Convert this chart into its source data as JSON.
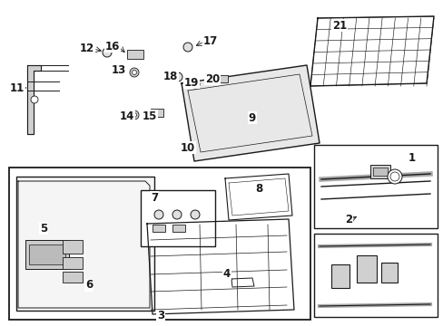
{
  "bg": "#ffffff",
  "lc": "#1a1a1a",
  "fig_w": 4.89,
  "fig_h": 3.6,
  "dpi": 100,
  "numbers": [
    [
      "1",
      454,
      174
    ],
    [
      "2",
      384,
      243
    ],
    [
      "3",
      177,
      349
    ],
    [
      "4",
      250,
      302
    ],
    [
      "5",
      48,
      252
    ],
    [
      "6",
      98,
      315
    ],
    [
      "7",
      170,
      218
    ],
    [
      "8",
      285,
      208
    ],
    [
      "9",
      278,
      130
    ],
    [
      "10",
      207,
      163
    ],
    [
      "11",
      19,
      97
    ],
    [
      "12",
      96,
      53
    ],
    [
      "13",
      131,
      77
    ],
    [
      "14",
      140,
      128
    ],
    [
      "15",
      165,
      128
    ],
    [
      "16",
      124,
      51
    ],
    [
      "17",
      232,
      45
    ],
    [
      "18",
      188,
      84
    ],
    [
      "19",
      211,
      91
    ],
    [
      "20",
      234,
      87
    ],
    [
      "21",
      374,
      28
    ]
  ]
}
